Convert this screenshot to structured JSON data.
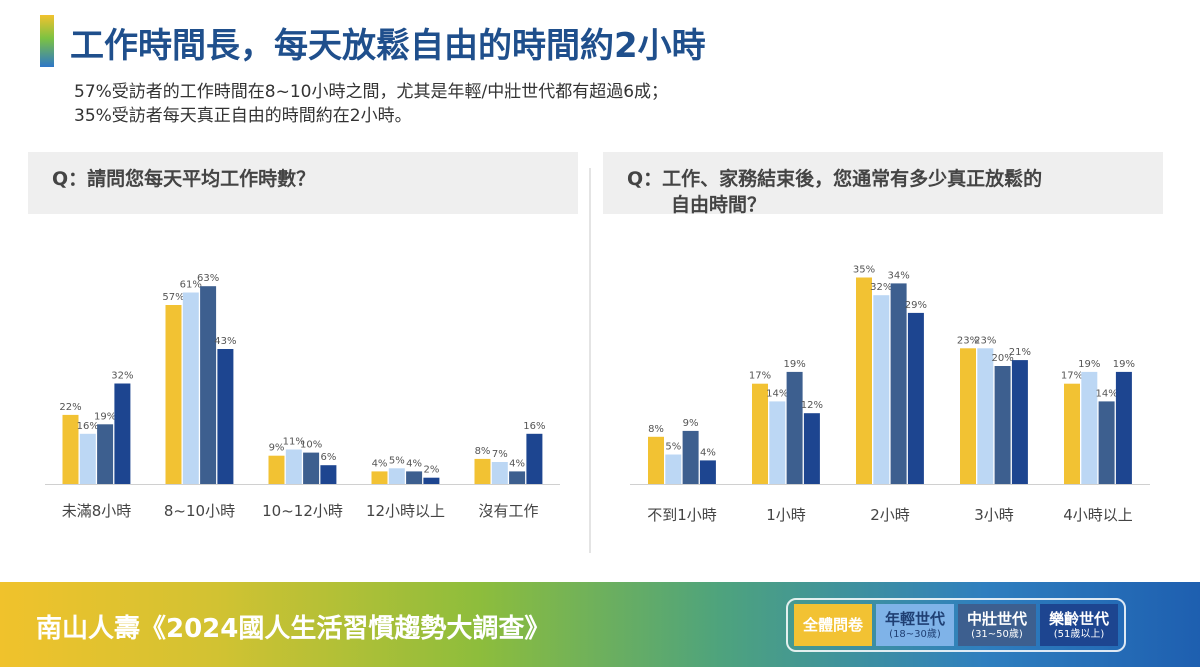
{
  "header": {
    "title": "工作時間長，每天放鬆自由的時間約2小時",
    "subtitle_line1": "57%受訪者的工作時間在8~10小時之間，尤其是年輕/中壯世代都有超過6成；",
    "subtitle_line2": "35%受訪者每天真正自由的時間約在2小時。"
  },
  "colors": {
    "all": "#f2c233",
    "young": "#bcd7f4",
    "middle": "#3d5f8f",
    "senior": "#1d4590",
    "title": "#1f4f8c"
  },
  "chart_data": [
    {
      "type": "bar",
      "title": "Q：請問您每天平均工作時數？",
      "categories": [
        "未滿8小時",
        "8~10小時",
        "10~12小時",
        "12小時以上",
        "沒有工作"
      ],
      "series": [
        {
          "name": "全體問卷",
          "values": [
            22,
            57,
            9,
            4,
            8
          ]
        },
        {
          "name": "年輕世代",
          "values": [
            16,
            61,
            11,
            5,
            7
          ]
        },
        {
          "name": "中壯世代",
          "values": [
            19,
            63,
            10,
            4,
            4
          ]
        },
        {
          "name": "樂齡世代",
          "values": [
            32,
            43,
            6,
            2,
            16
          ]
        }
      ],
      "ylim": [
        0,
        70
      ],
      "grid": false
    },
    {
      "type": "bar",
      "title": "Q：工作、家務結束後，您通常有多少真正放鬆的自由時間？",
      "title_line1": "Q：工作、家務結束後，您通常有多少真正放鬆的",
      "title_line2": "自由時間？",
      "categories": [
        "不到1小時",
        "1小時",
        "2小時",
        "3小時",
        "4小時以上"
      ],
      "series": [
        {
          "name": "全體問卷",
          "values": [
            8,
            17,
            35,
            23,
            17
          ]
        },
        {
          "name": "年輕世代",
          "values": [
            5,
            14,
            32,
            23,
            19
          ]
        },
        {
          "name": "中壯世代",
          "values": [
            9,
            19,
            34,
            20,
            14
          ]
        },
        {
          "name": "樂齡世代",
          "values": [
            4,
            12,
            29,
            21,
            19
          ]
        }
      ],
      "ylim": [
        0,
        40
      ],
      "grid": false
    }
  ],
  "footer": {
    "text": "南山人壽《2024國人生活習慣趨勢大調查》",
    "legend": [
      {
        "label": "全體問卷",
        "sub": ""
      },
      {
        "label": "年輕世代",
        "sub": "(18~30歲)"
      },
      {
        "label": "中壯世代",
        "sub": "(31~50歲)"
      },
      {
        "label": "樂齡世代",
        "sub": "(51歲以上)"
      }
    ]
  }
}
